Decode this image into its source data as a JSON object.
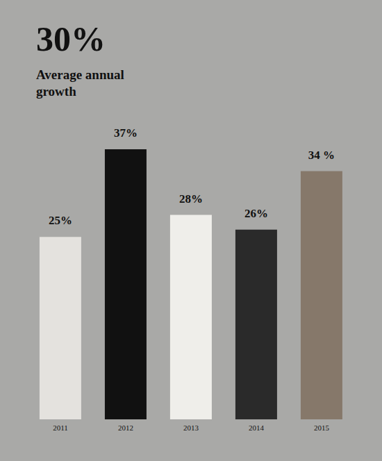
{
  "chart_data": {
    "type": "bar",
    "title": "30%",
    "subtitle": "Average annual growth",
    "categories": [
      "2011",
      "2012",
      "2013",
      "2014",
      "2015"
    ],
    "values": [
      25,
      37,
      28,
      26,
      34
    ],
    "value_labels": [
      "25%",
      "37%",
      "28%",
      "26%",
      "34 %"
    ],
    "colors": [
      "#e4e2de",
      "#111111",
      "#efeeea",
      "#2a2a2a",
      "#86786a"
    ],
    "data_labels": true,
    "tick_labels": "x",
    "grid": false
  }
}
